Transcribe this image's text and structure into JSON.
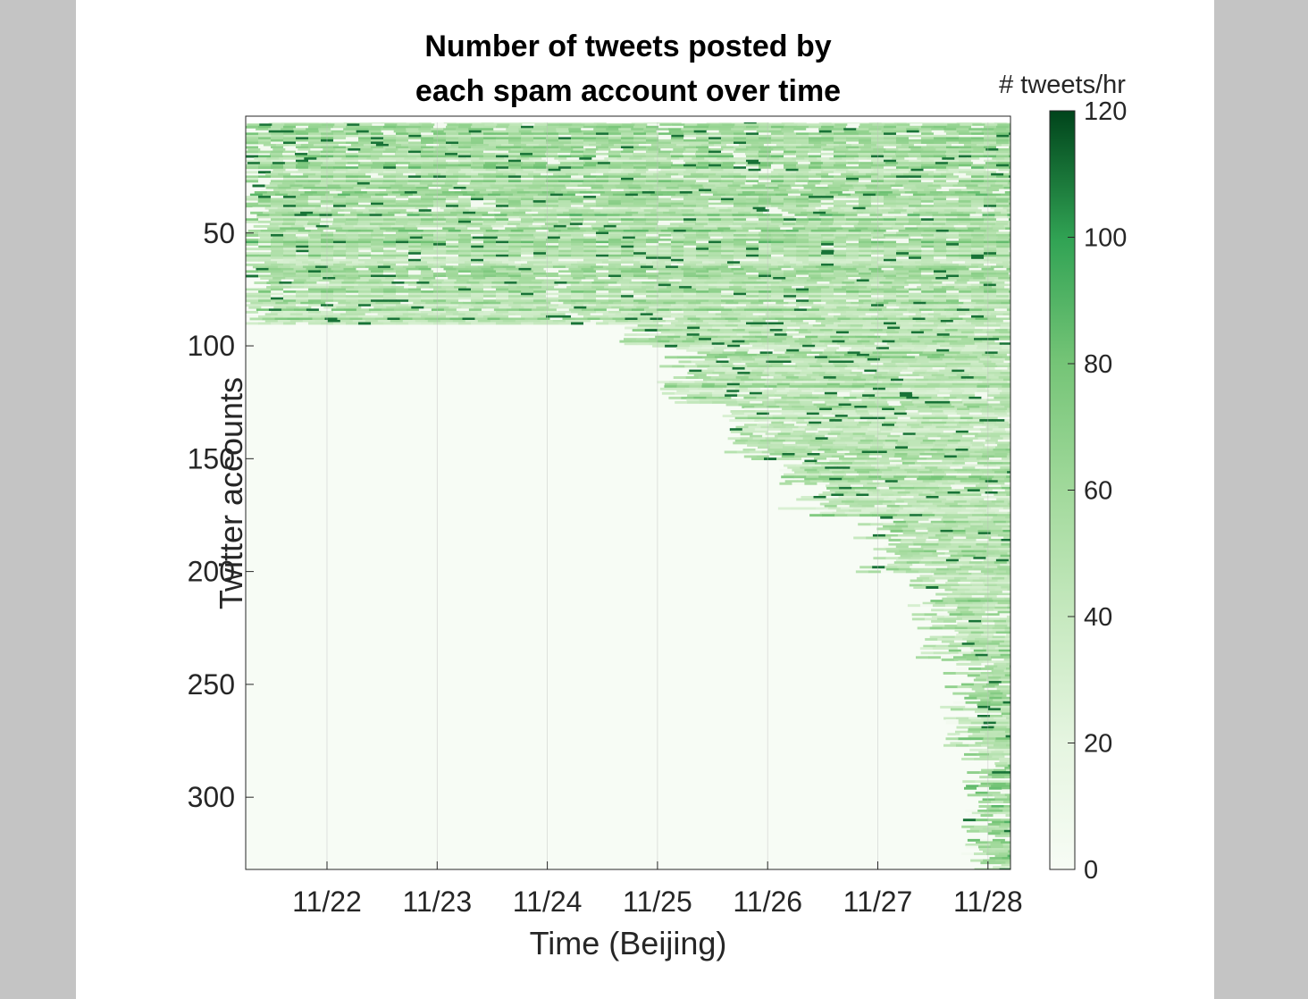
{
  "chart_data": {
    "type": "heatmap",
    "title_lines": [
      "Number of tweets posted by",
      "each spam account over time"
    ],
    "xlabel": "Time (Beijing)",
    "ylabel": "Twitter accounts",
    "x_ticks": [
      "11/22",
      "11/23",
      "11/24",
      "11/25",
      "11/26",
      "11/27",
      "11/28"
    ],
    "y_ticks": [
      50,
      100,
      150,
      200,
      250,
      300
    ],
    "y_range": [
      1,
      332
    ],
    "x_range_days": [
      0,
      7
    ],
    "colorbar": {
      "label": "# tweets/hr",
      "range": [
        0,
        120
      ],
      "ticks": [
        0,
        20,
        40,
        60,
        80,
        100,
        120
      ],
      "color_low": "#f7fcf5",
      "color_high": "#00441b"
    },
    "grid": true,
    "activity_bands": [
      {
        "accounts": [
          1,
          20
        ],
        "start_day": 0.0,
        "level": 55
      },
      {
        "accounts": [
          21,
          60
        ],
        "start_day": 0.0,
        "level": 60
      },
      {
        "accounts": [
          61,
          90
        ],
        "start_day": 0.0,
        "level": 55
      },
      {
        "accounts": [
          91,
          100
        ],
        "start_day": 3.6,
        "level": 50
      },
      {
        "accounts": [
          101,
          125
        ],
        "start_day": 4.0,
        "level": 50
      },
      {
        "accounts": [
          126,
          150
        ],
        "start_day": 4.6,
        "level": 50
      },
      {
        "accounts": [
          151,
          175
        ],
        "start_day": 5.1,
        "level": 55
      },
      {
        "accounts": [
          176,
          200
        ],
        "start_day": 5.8,
        "level": 55
      },
      {
        "accounts": [
          201,
          240
        ],
        "start_day": 6.3,
        "level": 55
      },
      {
        "accounts": [
          241,
          280
        ],
        "start_day": 6.6,
        "level": 55
      },
      {
        "accounts": [
          281,
          332
        ],
        "start_day": 6.8,
        "level": 60
      }
    ]
  }
}
